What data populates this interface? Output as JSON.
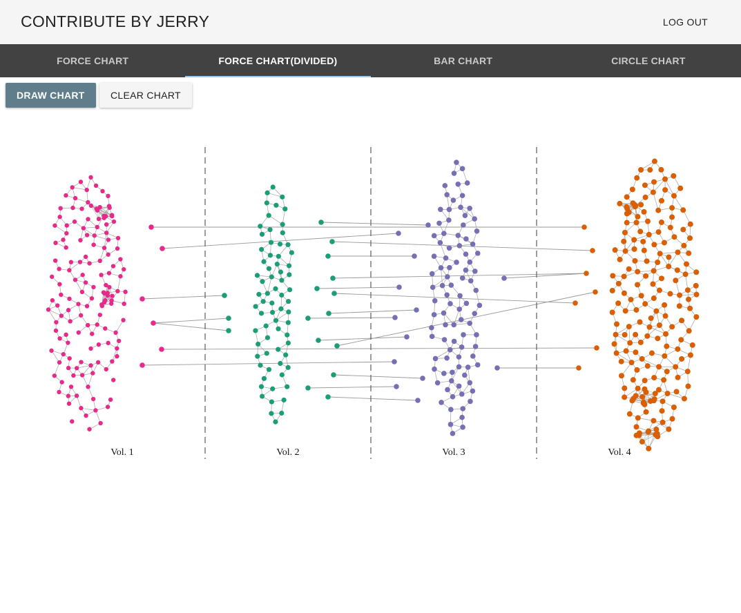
{
  "app": {
    "title": "CONTRIBUTE BY JERRY",
    "logout_label": "LOG OUT"
  },
  "tabs": [
    {
      "label": "FORCE CHART",
      "active": false
    },
    {
      "label": "FORCE CHART(DIVIDED)",
      "active": true
    },
    {
      "label": "BAR CHART",
      "active": false
    },
    {
      "label": "CIRCLE CHART",
      "active": false
    }
  ],
  "toolbar": {
    "draw_label": "DRAW CHART",
    "clear_label": "CLEAR CHART"
  },
  "chart_data": {
    "type": "network",
    "volumes": [
      {
        "label": "Vol. 1",
        "color": "#e7298a"
      },
      {
        "label": "Vol. 2",
        "color": "#1b9e77"
      },
      {
        "label": "Vol. 3",
        "color": "#7570b3"
      },
      {
        "label": "Vol. 4",
        "color": "#d95f02"
      }
    ],
    "divider_color": "#666666",
    "link_color": "#999999"
  }
}
